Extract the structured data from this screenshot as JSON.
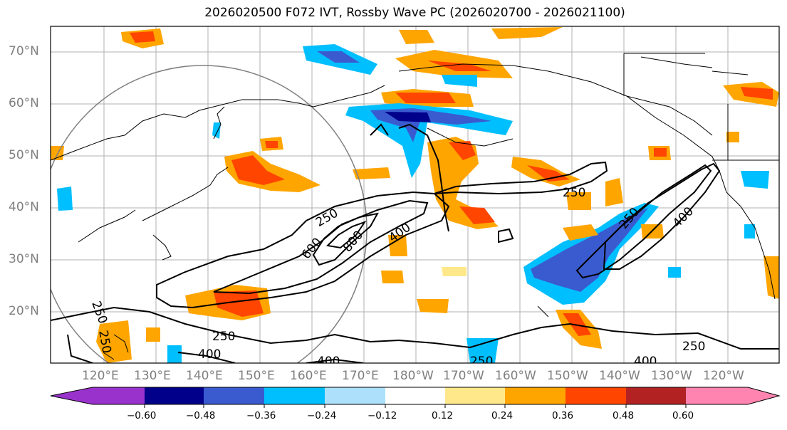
{
  "map": {
    "title": "2026020500 F072 IVT, Rossby Wave PC (2026020700 - 2026021100)",
    "lat_labels": [
      "70°N",
      "60°N",
      "50°N",
      "40°N",
      "30°N",
      "20°N"
    ],
    "lon_labels": [
      "120°E",
      "130°E",
      "140°E",
      "150°E",
      "160°E",
      "170°E",
      "180°W",
      "170°W",
      "160°W",
      "150°W",
      "140°W",
      "130°W",
      "120°W"
    ],
    "contour_labels": [
      "250",
      "250",
      "400",
      "600",
      "800",
      "250",
      "250",
      "400",
      "250",
      "400",
      "400",
      "250",
      "400",
      "250",
      "250"
    ],
    "colors": {
      "neg_060": "#9932CC",
      "neg_048": "#00008B",
      "neg_036": "#3A5BD0",
      "neg_024": "#00BFFF",
      "neg_012": "#ADE0FA",
      "zero": "#FFFFFF",
      "pos_012": "#FFE88A",
      "pos_024": "#FFA500",
      "pos_036": "#FF4500",
      "pos_048": "#B22222",
      "pos_060": "#FF85B0"
    }
  },
  "colorbar": {
    "tick_labels": [
      "−0.60",
      "−0.48",
      "−0.36",
      "−0.24",
      "−0.12",
      "0.12",
      "0.24",
      "0.36",
      "0.48",
      "0.60"
    ],
    "colors": [
      "#9932CC",
      "#00008B",
      "#3A5BD0",
      "#00BFFF",
      "#ADE0FA",
      "#FFFFFF",
      "#FFE88A",
      "#FFA500",
      "#FF4500",
      "#B22222",
      "#FF85B0"
    ]
  }
}
